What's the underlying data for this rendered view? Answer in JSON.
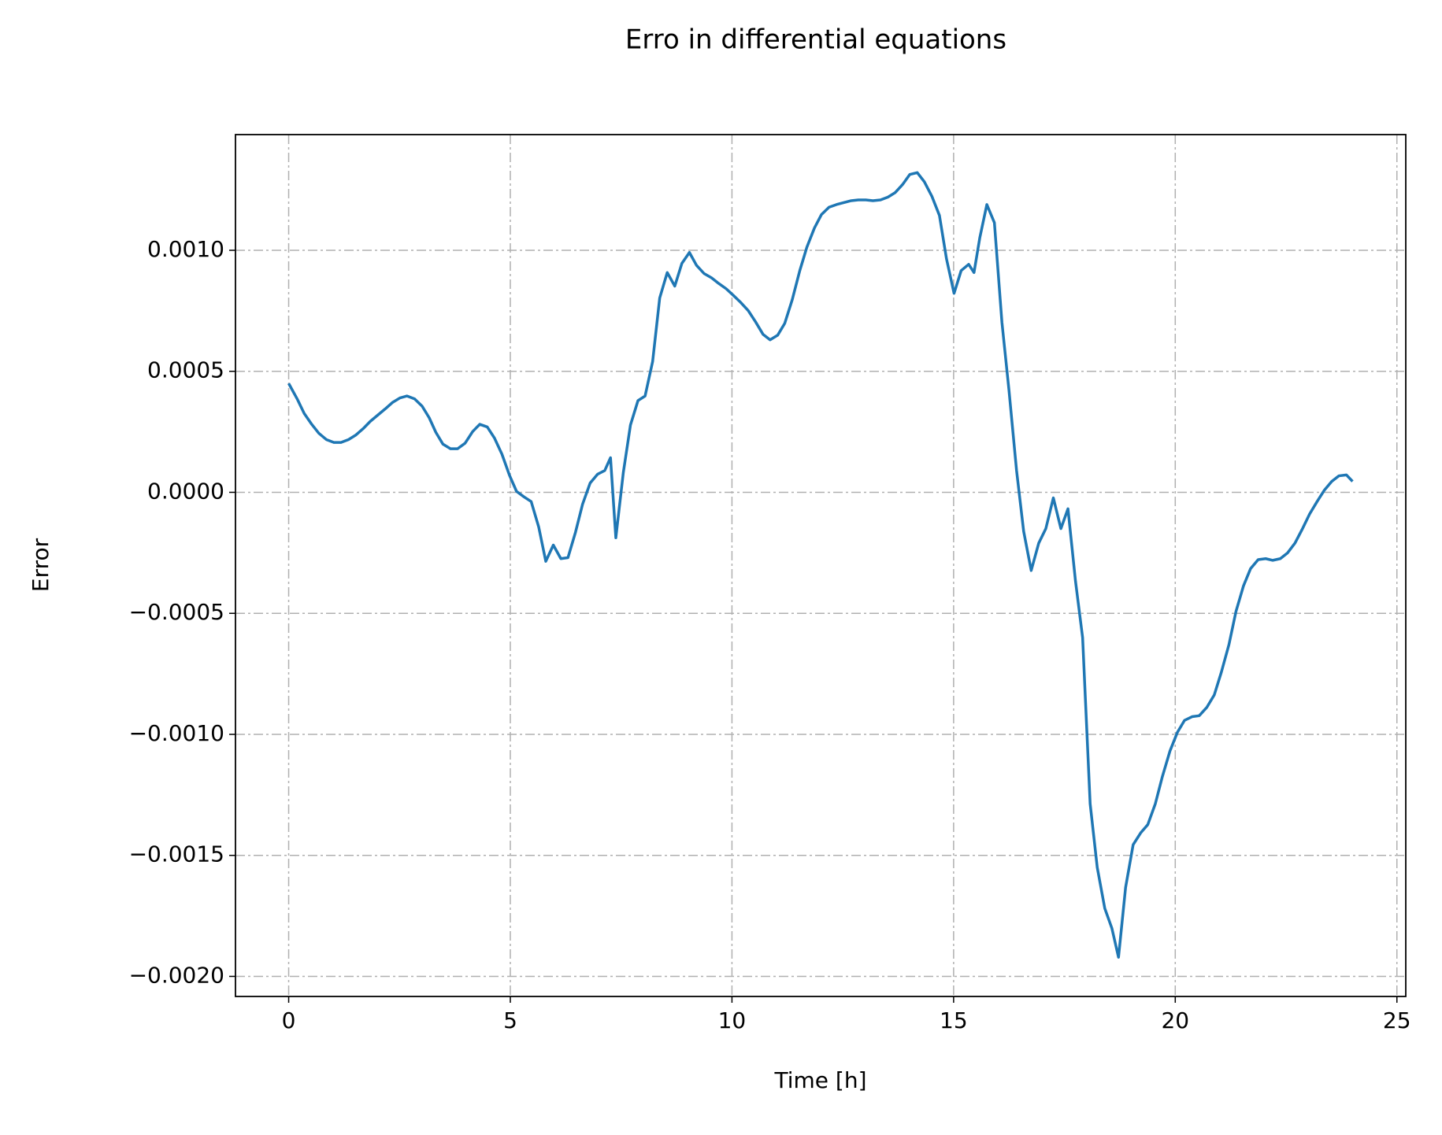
{
  "chart_data": {
    "type": "line",
    "title": "Erro in differential equations",
    "x_label": "Time [h]",
    "y_label": "Error",
    "color": "#1f77b4",
    "grid": true,
    "xlim": [
      -1.2,
      25.2
    ],
    "ylim": [
      -0.002083,
      0.001478
    ],
    "xticks": [
      0,
      5,
      10,
      15,
      20,
      25
    ],
    "yticks": [
      {
        "value": -0.002,
        "label": "−0.0020"
      },
      {
        "value": -0.0015,
        "label": "−0.0015"
      },
      {
        "value": -0.001,
        "label": "−0.0010"
      },
      {
        "value": -0.0005,
        "label": "−0.0005"
      },
      {
        "value": 0,
        "label": "0.0000"
      },
      {
        "value": 0.0005,
        "label": "0.0005"
      },
      {
        "value": 0.001,
        "label": "0.0010"
      }
    ],
    "x": [
      0,
      0.2,
      0.35,
      0.52,
      0.68,
      0.85,
      1.02,
      1.18,
      1.35,
      1.51,
      1.68,
      1.84,
      2.01,
      2.18,
      2.34,
      2.51,
      2.67,
      2.84,
      3.01,
      3.17,
      3.32,
      3.48,
      3.65,
      3.81,
      3.98,
      4.15,
      4.31,
      4.48,
      4.64,
      4.81,
      4.98,
      5.14,
      5.31,
      5.47,
      5.64,
      5.8,
      5.97,
      6.14,
      6.3,
      6.47,
      6.63,
      6.8,
      6.97,
      7.13,
      7.26,
      7.38,
      7.55,
      7.71,
      7.88,
      8.04,
      8.21,
      8.37,
      8.54,
      8.71,
      8.87,
      9.04,
      9.2,
      9.37,
      9.54,
      9.7,
      9.87,
      10.03,
      10.2,
      10.37,
      10.53,
      10.7,
      10.86,
      11.03,
      11.19,
      11.36,
      11.53,
      11.69,
      11.86,
      12.02,
      12.19,
      12.36,
      12.52,
      12.69,
      12.85,
      13.02,
      13.18,
      13.35,
      13.52,
      13.68,
      13.85,
      14.01,
      14.18,
      14.34,
      14.51,
      14.68,
      14.84,
      15.01,
      15.17,
      15.34,
      15.46,
      15.59,
      15.75,
      15.92,
      16.09,
      16.25,
      16.42,
      16.58,
      16.75,
      16.92,
      17.08,
      17.25,
      17.42,
      17.58,
      17.75,
      17.91,
      18.08,
      18.24,
      18.41,
      18.57,
      18.72,
      18.88,
      19.05,
      19.22,
      19.38,
      19.55,
      19.71,
      19.88,
      20.05,
      20.21,
      20.38,
      20.54,
      20.71,
      20.88,
      21.04,
      21.21,
      21.37,
      21.54,
      21.7,
      21.87,
      22.04,
      22.2,
      22.37,
      22.53,
      22.7,
      22.86,
      23.03,
      23.2,
      23.36,
      23.53,
      23.69,
      23.86,
      24.0
    ],
    "values": [
      0.00045,
      0.000383,
      0.000326,
      0.000281,
      0.000244,
      0.000218,
      0.000206,
      0.000206,
      0.000218,
      0.000236,
      0.000263,
      0.000293,
      0.000319,
      0.000345,
      0.000371,
      0.00039,
      0.000398,
      0.000386,
      0.000356,
      0.000308,
      0.000248,
      0.000199,
      0.00018,
      0.00018,
      0.000203,
      0.000251,
      0.000281,
      0.00027,
      0.000225,
      0.000158,
      7.1e-05,
      4e-06,
      -1.9e-05,
      -3.8e-05,
      -0.000143,
      -0.000285,
      -0.000218,
      -0.000274,
      -0.00027,
      -0.000165,
      -4.9e-05,
      3.8e-05,
      7.5e-05,
      9e-05,
      0.000143,
      -0.000188,
      8.3e-05,
      0.000278,
      0.000379,
      0.000398,
      0.00054,
      0.000803,
      0.000908,
      0.000852,
      0.000946,
      0.000991,
      0.000938,
      0.000904,
      0.000886,
      0.000863,
      0.000841,
      0.000814,
      0.000784,
      0.00075,
      0.000705,
      0.000653,
      0.00063,
      0.000649,
      0.000698,
      0.000796,
      0.000916,
      0.001013,
      0.001092,
      0.001148,
      0.001178,
      0.001189,
      0.001197,
      0.001205,
      0.001208,
      0.001208,
      0.001205,
      0.001208,
      0.00122,
      0.001238,
      0.001272,
      0.001313,
      0.001321,
      0.001283,
      0.001223,
      0.001144,
      0.000964,
      0.000822,
      0.000916,
      0.000942,
      0.000908,
      0.001051,
      0.001189,
      0.001114,
      0.000702,
      0.00042,
      9e-05,
      -0.000161,
      -0.000323,
      -0.00021,
      -0.00015,
      -2.3e-05,
      -0.00015,
      -6.8e-05,
      -0.000368,
      -0.0006,
      -0.001287,
      -0.00155,
      -0.001719,
      -0.001801,
      -0.001921,
      -0.001632,
      -0.001456,
      -0.001407,
      -0.001373,
      -0.001287,
      -0.001174,
      -0.001069,
      -0.000991,
      -0.000942,
      -0.000927,
      -0.000923,
      -0.000889,
      -0.000837,
      -0.000743,
      -0.00063,
      -0.000492,
      -0.000386,
      -0.000315,
      -0.000278,
      -0.000274,
      -0.000281,
      -0.000274,
      -0.000251,
      -0.00021,
      -0.000154,
      -9e-05,
      -3.8e-05,
      8e-06,
      4.5e-05,
      6.8e-05,
      7.2e-05,
      4.5e-05
    ]
  }
}
